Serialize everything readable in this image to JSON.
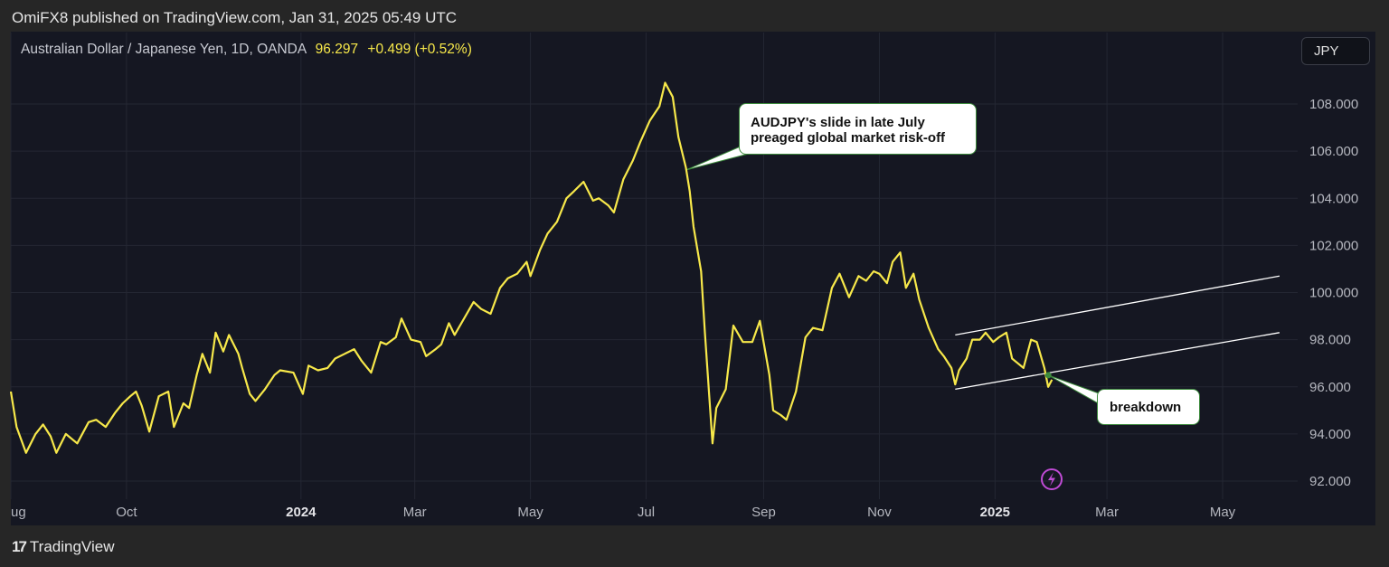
{
  "header": {
    "publish_text": "OmiFX8 published on TradingView.com, Jan 31, 2025 05:49 UTC"
  },
  "legend": {
    "symbol": "Australian Dollar / Japanese Yen, 1D, OANDA",
    "last": "96.297",
    "change": "+0.499 (+0.52%)"
  },
  "currency_button": "JPY",
  "footer": {
    "brand": "TradingView",
    "mark": "17"
  },
  "annotations": {
    "callout1": [
      "AUDJPY's slide in late July",
      "preaged global market risk-off"
    ],
    "callout2": "breakdown"
  },
  "colors": {
    "price": "#f7e84a",
    "channel": "#ffffff",
    "background": "#151722",
    "callout_border": "#3c8a3c",
    "lightning": "#c04bd6"
  },
  "icons": {
    "lightning": "lightning-icon"
  },
  "chart_data": {
    "type": "line",
    "title": "",
    "xlabel": "",
    "ylabel": "",
    "ylim": [
      91.8,
      110.5
    ],
    "y_ticks": [
      "92.000",
      "94.000",
      "96.000",
      "98.000",
      "100.000",
      "102.000",
      "104.000",
      "106.000",
      "108.000"
    ],
    "y_tick_values": [
      92,
      94,
      96,
      98,
      100,
      102,
      104,
      106,
      108
    ],
    "x_ticks": [
      {
        "label": "ug",
        "date": "2023-08-01",
        "bold": false
      },
      {
        "label": "Oct",
        "date": "2023-10-01",
        "bold": false
      },
      {
        "label": "2024",
        "date": "2024-01-01",
        "bold": true
      },
      {
        "label": "Mar",
        "date": "2024-03-01",
        "bold": false
      },
      {
        "label": "May",
        "date": "2024-05-01",
        "bold": false
      },
      {
        "label": "Jul",
        "date": "2024-07-01",
        "bold": false
      },
      {
        "label": "Sep",
        "date": "2024-09-01",
        "bold": false
      },
      {
        "label": "Nov",
        "date": "2024-11-01",
        "bold": false
      },
      {
        "label": "2025",
        "date": "2025-01-01",
        "bold": true
      },
      {
        "label": "Mar",
        "date": "2025-03-01",
        "bold": false
      },
      {
        "label": "May",
        "date": "2025-05-01",
        "bold": false
      }
    ],
    "grid": true,
    "series": [
      {
        "points": [
          [
            "2023-08-01",
            95.8
          ],
          [
            "2023-08-04",
            94.3
          ],
          [
            "2023-08-09",
            93.2
          ],
          [
            "2023-08-14",
            94.0
          ],
          [
            "2023-08-18",
            94.4
          ],
          [
            "2023-08-22",
            93.9
          ],
          [
            "2023-08-25",
            93.2
          ],
          [
            "2023-08-30",
            94.0
          ],
          [
            "2023-09-05",
            93.6
          ],
          [
            "2023-09-11",
            94.5
          ],
          [
            "2023-09-15",
            94.6
          ],
          [
            "2023-09-20",
            94.3
          ],
          [
            "2023-09-25",
            94.9
          ],
          [
            "2023-09-29",
            95.3
          ],
          [
            "2023-10-03",
            95.6
          ],
          [
            "2023-10-06",
            95.8
          ],
          [
            "2023-10-09",
            95.2
          ],
          [
            "2023-10-13",
            94.1
          ],
          [
            "2023-10-18",
            95.6
          ],
          [
            "2023-10-23",
            95.8
          ],
          [
            "2023-10-26",
            94.3
          ],
          [
            "2023-10-31",
            95.3
          ],
          [
            "2023-11-03",
            95.1
          ],
          [
            "2023-11-07",
            96.5
          ],
          [
            "2023-11-10",
            97.4
          ],
          [
            "2023-11-14",
            96.6
          ],
          [
            "2023-11-17",
            98.3
          ],
          [
            "2023-11-21",
            97.5
          ],
          [
            "2023-11-24",
            98.2
          ],
          [
            "2023-11-29",
            97.4
          ],
          [
            "2023-12-01",
            96.8
          ],
          [
            "2023-12-05",
            95.7
          ],
          [
            "2023-12-08",
            95.4
          ],
          [
            "2023-12-13",
            95.9
          ],
          [
            "2023-12-18",
            96.5
          ],
          [
            "2023-12-21",
            96.7
          ],
          [
            "2023-12-28",
            96.6
          ],
          [
            "2024-01-02",
            95.7
          ],
          [
            "2024-01-05",
            96.9
          ],
          [
            "2024-01-10",
            96.7
          ],
          [
            "2024-01-15",
            96.8
          ],
          [
            "2024-01-19",
            97.2
          ],
          [
            "2024-01-24",
            97.4
          ],
          [
            "2024-01-29",
            97.6
          ],
          [
            "2024-02-02",
            97.1
          ],
          [
            "2024-02-07",
            96.6
          ],
          [
            "2024-02-12",
            97.9
          ],
          [
            "2024-02-15",
            97.8
          ],
          [
            "2024-02-20",
            98.1
          ],
          [
            "2024-02-23",
            98.9
          ],
          [
            "2024-02-28",
            98.0
          ],
          [
            "2024-03-04",
            97.9
          ],
          [
            "2024-03-07",
            97.3
          ],
          [
            "2024-03-12",
            97.6
          ],
          [
            "2024-03-15",
            97.8
          ],
          [
            "2024-03-19",
            98.7
          ],
          [
            "2024-03-22",
            98.2
          ],
          [
            "2024-03-27",
            98.9
          ],
          [
            "2024-04-01",
            99.6
          ],
          [
            "2024-04-05",
            99.3
          ],
          [
            "2024-04-10",
            99.1
          ],
          [
            "2024-04-15",
            100.2
          ],
          [
            "2024-04-19",
            100.6
          ],
          [
            "2024-04-24",
            100.8
          ],
          [
            "2024-04-29",
            101.3
          ],
          [
            "2024-05-01",
            100.7
          ],
          [
            "2024-05-06",
            101.8
          ],
          [
            "2024-05-10",
            102.5
          ],
          [
            "2024-05-15",
            103.0
          ],
          [
            "2024-05-20",
            104.0
          ],
          [
            "2024-05-24",
            104.3
          ],
          [
            "2024-05-29",
            104.7
          ],
          [
            "2024-06-03",
            103.9
          ],
          [
            "2024-06-06",
            104.0
          ],
          [
            "2024-06-11",
            103.7
          ],
          [
            "2024-06-14",
            103.4
          ],
          [
            "2024-06-19",
            104.8
          ],
          [
            "2024-06-24",
            105.6
          ],
          [
            "2024-06-28",
            106.4
          ],
          [
            "2024-07-03",
            107.3
          ],
          [
            "2024-07-08",
            107.9
          ],
          [
            "2024-07-11",
            108.9
          ],
          [
            "2024-07-15",
            108.3
          ],
          [
            "2024-07-18",
            106.6
          ],
          [
            "2024-07-22",
            105.3
          ],
          [
            "2024-07-24",
            104.3
          ],
          [
            "2024-07-26",
            102.8
          ],
          [
            "2024-07-30",
            100.9
          ],
          [
            "2024-08-01",
            98.3
          ],
          [
            "2024-08-05",
            93.6
          ],
          [
            "2024-08-07",
            95.1
          ],
          [
            "2024-08-12",
            95.9
          ],
          [
            "2024-08-16",
            98.6
          ],
          [
            "2024-08-21",
            97.9
          ],
          [
            "2024-08-26",
            97.9
          ],
          [
            "2024-08-30",
            98.8
          ],
          [
            "2024-09-04",
            96.5
          ],
          [
            "2024-09-06",
            95.0
          ],
          [
            "2024-09-10",
            94.8
          ],
          [
            "2024-09-13",
            94.6
          ],
          [
            "2024-09-18",
            95.8
          ],
          [
            "2024-09-23",
            98.1
          ],
          [
            "2024-09-27",
            98.5
          ],
          [
            "2024-10-02",
            98.4
          ],
          [
            "2024-10-07",
            100.2
          ],
          [
            "2024-10-11",
            100.8
          ],
          [
            "2024-10-16",
            99.8
          ],
          [
            "2024-10-21",
            100.7
          ],
          [
            "2024-10-25",
            100.5
          ],
          [
            "2024-10-29",
            100.9
          ],
          [
            "2024-11-01",
            100.8
          ],
          [
            "2024-11-05",
            100.4
          ],
          [
            "2024-11-08",
            101.3
          ],
          [
            "2024-11-12",
            101.7
          ],
          [
            "2024-11-15",
            100.2
          ],
          [
            "2024-11-19",
            100.8
          ],
          [
            "2024-11-22",
            99.7
          ],
          [
            "2024-11-27",
            98.5
          ],
          [
            "2024-12-02",
            97.6
          ],
          [
            "2024-12-05",
            97.3
          ],
          [
            "2024-12-09",
            96.8
          ],
          [
            "2024-12-11",
            96.1
          ],
          [
            "2024-12-13",
            96.7
          ],
          [
            "2024-12-17",
            97.2
          ],
          [
            "2024-12-20",
            98.0
          ],
          [
            "2024-12-24",
            98.0
          ],
          [
            "2024-12-27",
            98.3
          ],
          [
            "2024-12-31",
            97.9
          ],
          [
            "2025-01-03",
            98.1
          ],
          [
            "2025-01-07",
            98.3
          ],
          [
            "2025-01-10",
            97.2
          ],
          [
            "2025-01-13",
            97.0
          ],
          [
            "2025-01-16",
            96.8
          ],
          [
            "2025-01-20",
            98.0
          ],
          [
            "2025-01-23",
            97.9
          ],
          [
            "2025-01-27",
            96.8
          ],
          [
            "2025-01-29",
            96.0
          ],
          [
            "2025-01-31",
            96.3
          ]
        ]
      }
    ],
    "channel_lines": [
      {
        "name": "upper",
        "start": [
          "2024-12-11",
          98.2
        ],
        "end": [
          "2025-05-31",
          100.7
        ]
      },
      {
        "name": "lower",
        "start": [
          "2024-12-11",
          95.9
        ],
        "end": [
          "2025-05-31",
          98.3
        ]
      }
    ],
    "annotations": [
      {
        "text": "AUDJPY's slide in late July preaged global market risk-off",
        "anchor": [
          "2024-07-22",
          105.2
        ]
      },
      {
        "text": "breakdown",
        "anchor": [
          "2025-01-31",
          96.3
        ]
      }
    ]
  }
}
